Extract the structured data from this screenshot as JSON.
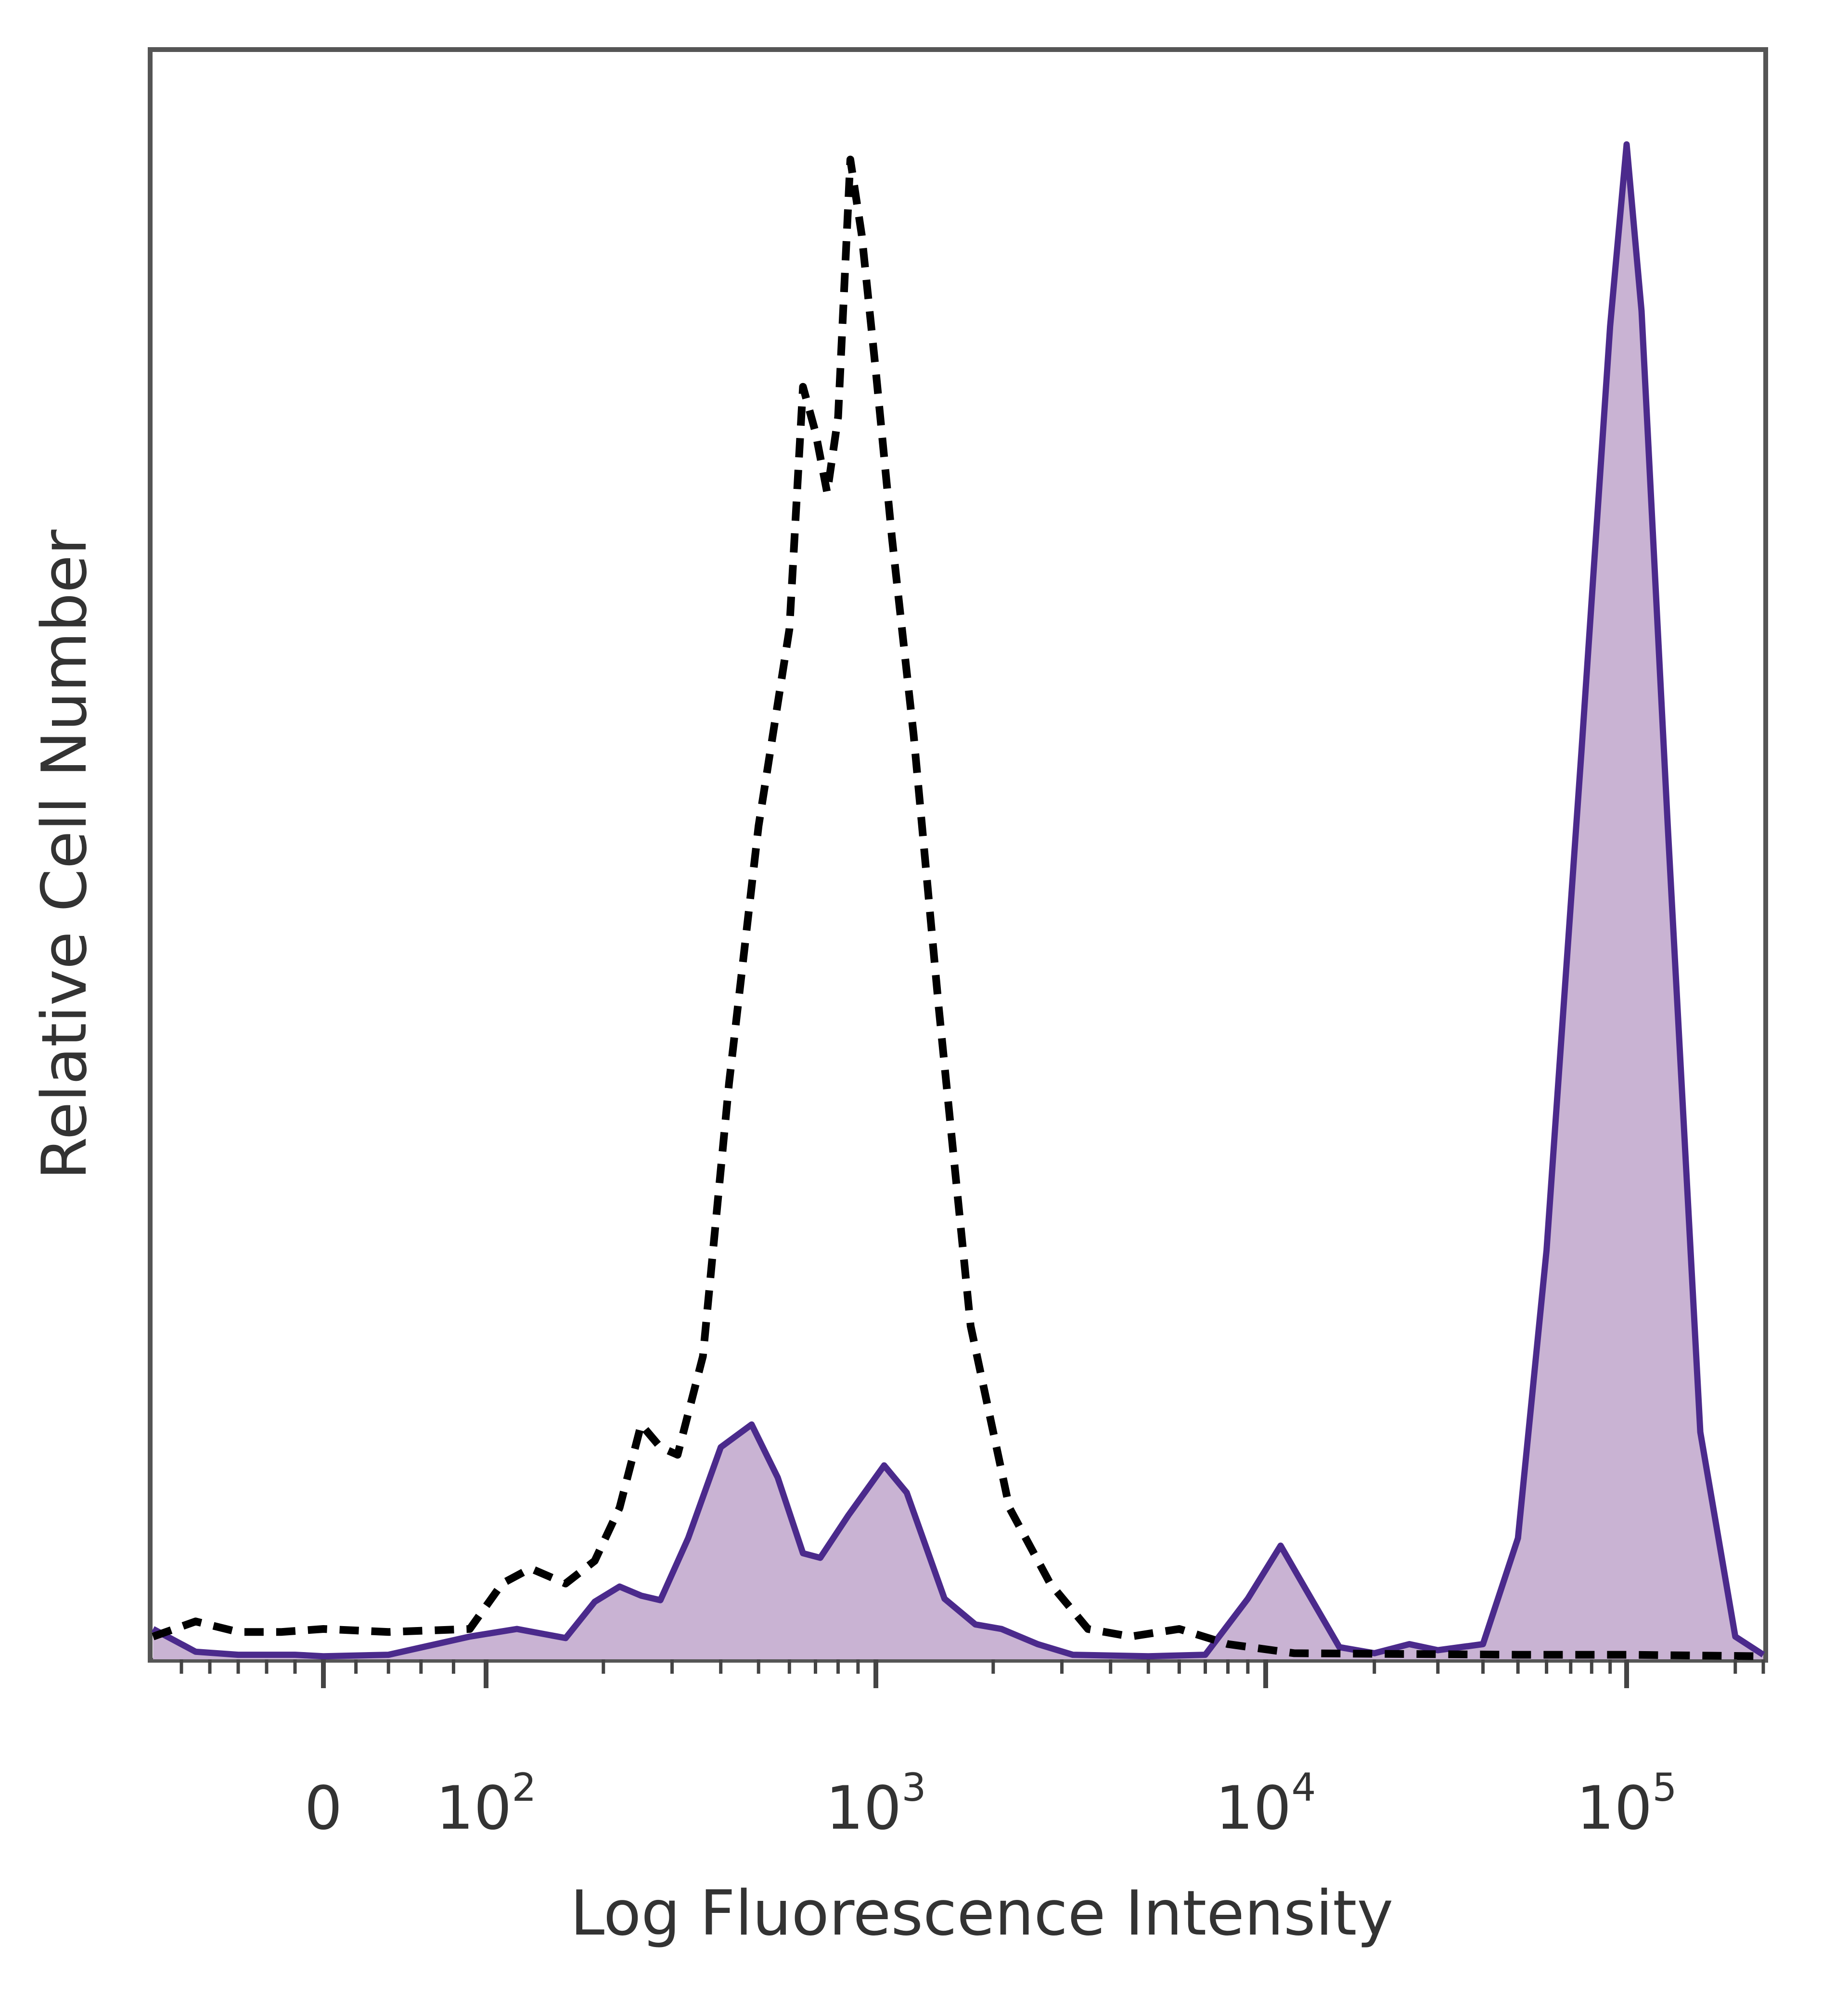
{
  "chart_data": {
    "type": "area",
    "xlabel": "Log Fluorescence Intensity",
    "ylabel": "Relative Cell Number",
    "x_scale": "biexponential",
    "xlim": [
      -120,
      300000
    ],
    "ylim": [
      0,
      100
    ],
    "grid": false,
    "legend": "none",
    "x_ticks": [
      {
        "value": 0,
        "base": "0",
        "exp": ""
      },
      {
        "value": 100,
        "base": "10",
        "exp": "2"
      },
      {
        "value": 1000,
        "base": "10",
        "exp": "3"
      },
      {
        "value": 10000,
        "base": "10",
        "exp": "4"
      },
      {
        "value": 100000,
        "base": "10",
        "exp": "5"
      }
    ],
    "series": [
      {
        "style": "filled-solid",
        "line_color": "#4B2A8C",
        "fill_color": "#C9B3D3",
        "points": [
          [
            -120,
            2
          ],
          [
            -90,
            0.5
          ],
          [
            -60,
            0.3
          ],
          [
            -20,
            0.3
          ],
          [
            0,
            0.2
          ],
          [
            40,
            0.3
          ],
          [
            90,
            1.5
          ],
          [
            120,
            2.0
          ],
          [
            160,
            1.4
          ],
          [
            190,
            3.8
          ],
          [
            220,
            4.8
          ],
          [
            250,
            4.2
          ],
          [
            280,
            3.9
          ],
          [
            330,
            8.0
          ],
          [
            400,
            14.0
          ],
          [
            480,
            15.5
          ],
          [
            560,
            12.0
          ],
          [
            650,
            7.0
          ],
          [
            720,
            6.7
          ],
          [
            850,
            9.5
          ],
          [
            1050,
            12.8
          ],
          [
            1200,
            11.0
          ],
          [
            1500,
            4.0
          ],
          [
            1800,
            2.3
          ],
          [
            2100,
            2.0
          ],
          [
            2600,
            1.0
          ],
          [
            3200,
            0.3
          ],
          [
            5000,
            0.2
          ],
          [
            7000,
            0.3
          ],
          [
            9000,
            4.0
          ],
          [
            11000,
            7.5
          ],
          [
            13000,
            4.5
          ],
          [
            16000,
            0.8
          ],
          [
            20000,
            0.4
          ],
          [
            25000,
            1.0
          ],
          [
            30000,
            0.6
          ],
          [
            40000,
            1.0
          ],
          [
            50000,
            8.0
          ],
          [
            60000,
            27.0
          ],
          [
            75000,
            60.0
          ],
          [
            90000,
            88.0
          ],
          [
            100000,
            100.0
          ],
          [
            110000,
            89.0
          ],
          [
            130000,
            55.0
          ],
          [
            160000,
            15.0
          ],
          [
            200000,
            1.5
          ],
          [
            300000,
            0.3
          ]
        ]
      },
      {
        "style": "dashed",
        "line_color": "#000000",
        "fill_color": "none",
        "points": [
          [
            -120,
            1.5
          ],
          [
            -90,
            2.5
          ],
          [
            -60,
            1.8
          ],
          [
            -30,
            1.8
          ],
          [
            0,
            2.0
          ],
          [
            40,
            1.8
          ],
          [
            90,
            2.0
          ],
          [
            110,
            5.0
          ],
          [
            130,
            6.0
          ],
          [
            160,
            5.0
          ],
          [
            190,
            6.5
          ],
          [
            220,
            10.0
          ],
          [
            250,
            15.5
          ],
          [
            280,
            14.0
          ],
          [
            310,
            13.5
          ],
          [
            360,
            20.0
          ],
          [
            420,
            38.0
          ],
          [
            500,
            55.0
          ],
          [
            600,
            68.0
          ],
          [
            650,
            84.0
          ],
          [
            700,
            81.0
          ],
          [
            750,
            77.0
          ],
          [
            800,
            82.0
          ],
          [
            860,
            99.0
          ],
          [
            920,
            94.0
          ],
          [
            1000,
            85.0
          ],
          [
            1100,
            74.0
          ],
          [
            1250,
            61.0
          ],
          [
            1450,
            43.0
          ],
          [
            1750,
            22.0
          ],
          [
            2200,
            10.0
          ],
          [
            2800,
            5.0
          ],
          [
            3500,
            2.0
          ],
          [
            4500,
            1.5
          ],
          [
            6000,
            2.0
          ],
          [
            8000,
            1.0
          ],
          [
            12000,
            0.4
          ],
          [
            50000,
            0.3
          ],
          [
            100000,
            0.3
          ],
          [
            300000,
            0.2
          ]
        ]
      }
    ]
  }
}
